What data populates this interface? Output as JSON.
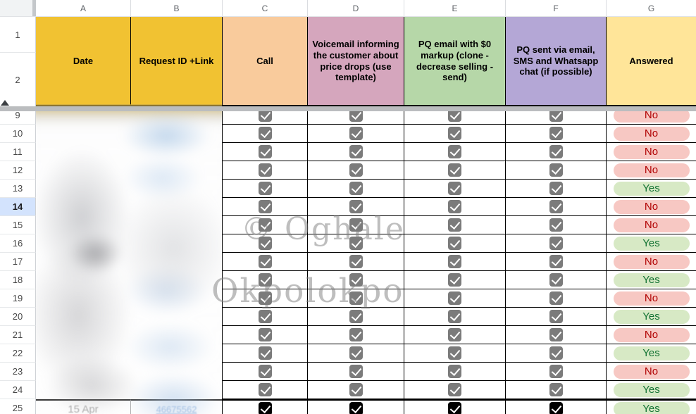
{
  "sheet": {
    "column_letters": [
      "A",
      "B",
      "C",
      "D",
      "E",
      "F",
      "G"
    ],
    "frozen_row_numbers": [
      "1",
      "2"
    ],
    "headers": [
      {
        "col": "A",
        "label": "Date",
        "bg": "#F1C232"
      },
      {
        "col": "B",
        "label": "Request ID +Link",
        "bg": "#F1C232"
      },
      {
        "col": "C",
        "label": "Call",
        "bg": "#F9CB9C"
      },
      {
        "col": "D",
        "label": "Voicemail informing the customer about price drops (use template)",
        "bg": "#D5A6BD"
      },
      {
        "col": "E",
        "label": "PQ email with $0 markup (clone - decrease selling - send)",
        "bg": "#B6D7A8"
      },
      {
        "col": "F",
        "label": "PQ sent via email, SMS and Whatsapp chat (if possible)",
        "bg": "#B4A7D6"
      },
      {
        "col": "G",
        "label": "Answered",
        "bg": "#FFE599"
      }
    ],
    "rows": [
      {
        "num": "9",
        "checkboxes": "gray",
        "answered": "No",
        "partial": true
      },
      {
        "num": "10",
        "checkboxes": "gray",
        "answered": "No"
      },
      {
        "num": "11",
        "checkboxes": "gray",
        "answered": "No"
      },
      {
        "num": "12",
        "checkboxes": "gray",
        "answered": "No"
      },
      {
        "num": "13",
        "checkboxes": "gray",
        "answered": "Yes"
      },
      {
        "num": "14",
        "checkboxes": "gray",
        "answered": "No"
      },
      {
        "num": "15",
        "checkboxes": "gray",
        "answered": "No"
      },
      {
        "num": "16",
        "checkboxes": "gray",
        "answered": "Yes"
      },
      {
        "num": "17",
        "checkboxes": "gray",
        "answered": "No"
      },
      {
        "num": "18",
        "checkboxes": "gray",
        "answered": "Yes"
      },
      {
        "num": "19",
        "checkboxes": "gray",
        "answered": "No"
      },
      {
        "num": "20",
        "checkboxes": "gray",
        "answered": "Yes"
      },
      {
        "num": "21",
        "checkboxes": "gray",
        "answered": "No"
      },
      {
        "num": "22",
        "checkboxes": "gray",
        "answered": "Yes"
      },
      {
        "num": "23",
        "checkboxes": "gray",
        "answered": "No"
      },
      {
        "num": "24",
        "checkboxes": "gray",
        "answered": "Yes"
      },
      {
        "num": "25",
        "checkboxes": "black",
        "answered": "Yes",
        "date": "15 Apr",
        "request_link": "46675562"
      }
    ],
    "selected_row": "14",
    "watermark": {
      "line1": "© Oghale",
      "line2": "Okpolokpo"
    },
    "colors": {
      "checkbox_gray": "#7B7B7B",
      "checkbox_black": "#000000",
      "pill_no_bg": "#F7C8C3",
      "pill_no_text": "#B10202",
      "pill_yes_bg": "#D7E9C5",
      "pill_yes_text": "#137333",
      "selected_row_bg": "#D3E3FD",
      "link": "#8AAFDC",
      "grid": "#000000",
      "divider": "#BBBDBF"
    }
  }
}
